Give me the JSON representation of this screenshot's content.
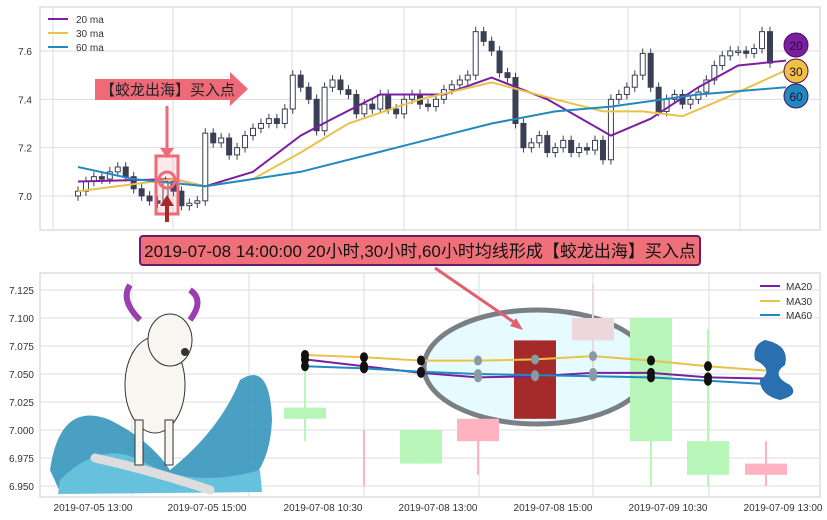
{
  "colors": {
    "ma20": "#7b1fa2",
    "ma30": "#e8c24a",
    "ma60": "#1f8ac0",
    "candle": "#3a3f55",
    "annotation": "#ef6a78",
    "title_border": "#6a1b6a"
  },
  "chart_data": [
    {
      "type": "candlestick",
      "title": "",
      "ylim": [
        6.87,
        7.77
      ],
      "yticks": [
        "7.0",
        "7.2",
        "7.4",
        "7.6"
      ],
      "grid": true,
      "legend": {
        "placement": "top-left",
        "entries": [
          "20 ma",
          "30 ma",
          "60 ma"
        ]
      },
      "closes": [
        7.02,
        7.06,
        7.08,
        7.07,
        7.1,
        7.12,
        7.08,
        7.03,
        7.0,
        6.98,
        6.97,
        7.06,
        7.02,
        6.96,
        6.97,
        6.98,
        7.26,
        7.22,
        7.24,
        7.17,
        7.2,
        7.25,
        7.28,
        7.3,
        7.32,
        7.3,
        7.36,
        7.5,
        7.45,
        7.4,
        7.27,
        7.45,
        7.48,
        7.44,
        7.42,
        7.34,
        7.38,
        7.36,
        7.42,
        7.36,
        7.34,
        7.4,
        7.42,
        7.38,
        7.37,
        7.4,
        7.44,
        7.46,
        7.48,
        7.5,
        7.68,
        7.64,
        7.6,
        7.51,
        7.49,
        7.3,
        7.2,
        7.22,
        7.25,
        7.18,
        7.2,
        7.23,
        7.18,
        7.2,
        7.19,
        7.23,
        7.15,
        7.4,
        7.42,
        7.45,
        7.5,
        7.59,
        7.45,
        7.35,
        7.4,
        7.42,
        7.38,
        7.4,
        7.43,
        7.48,
        7.54,
        7.58,
        7.6,
        7.6,
        7.59,
        7.61,
        7.68,
        7.55
      ],
      "ma_series": [
        {
          "name": "20 ma",
          "points": [
            [
              0,
              7.06
            ],
            [
              12,
              7.07
            ],
            [
              16,
              7.04
            ],
            [
              22,
              7.1
            ],
            [
              28,
              7.25
            ],
            [
              32,
              7.32
            ],
            [
              38,
              7.42
            ],
            [
              46,
              7.42
            ],
            [
              52,
              7.49
            ],
            [
              59,
              7.4
            ],
            [
              67,
              7.25
            ],
            [
              72,
              7.32
            ],
            [
              78,
              7.45
            ],
            [
              83,
              7.54
            ],
            [
              89,
              7.56
            ]
          ]
        },
        {
          "name": "30 ma",
          "points": [
            [
              0,
              7.02
            ],
            [
              12,
              7.07
            ],
            [
              16,
              7.04
            ],
            [
              22,
              7.07
            ],
            [
              28,
              7.18
            ],
            [
              34,
              7.3
            ],
            [
              43,
              7.4
            ],
            [
              52,
              7.47
            ],
            [
              60,
              7.4
            ],
            [
              66,
              7.35
            ],
            [
              71,
              7.35
            ],
            [
              76,
              7.33
            ],
            [
              81,
              7.4
            ],
            [
              89,
              7.52
            ]
          ]
        },
        {
          "name": "60 ma",
          "points": [
            [
              0,
              7.12
            ],
            [
              7,
              7.07
            ],
            [
              16,
              7.04
            ],
            [
              28,
              7.1
            ],
            [
              40,
              7.2
            ],
            [
              52,
              7.3
            ],
            [
              60,
              7.35
            ],
            [
              67,
              7.37
            ],
            [
              78,
              7.42
            ],
            [
              89,
              7.45
            ]
          ]
        }
      ],
      "badges": [
        "20",
        "30",
        "60"
      ],
      "annotation": {
        "label": "【蛟龙出海】买入点",
        "candle_index": 11
      }
    },
    {
      "type": "candlestick",
      "title": "2019-07-08 14:00:00 20小时,30小时,60小时均线形成【蛟龙出海】买入点",
      "ylim": [
        6.945,
        7.135
      ],
      "yticks": [
        "7.125",
        "7.100",
        "7.075",
        "7.050",
        "7.025",
        "7.000",
        "6.975",
        "6.950"
      ],
      "xticks": [
        "2019-07-05 13:00",
        "2019-07-05 15:00",
        "2019-07-08 10:30",
        "2019-07-08 13:00",
        "2019-07-08 15:00",
        "2019-07-09 10:30",
        "2019-07-09 13:00"
      ],
      "grid": true,
      "legend": {
        "placement": "top-right",
        "entries": [
          "MA20",
          "MA30",
          "MA60"
        ]
      },
      "candles": [
        {
          "o": 7.02,
          "c": 7.01,
          "h": 7.07,
          "l": 6.99,
          "color": "#b8f5b8"
        },
        {
          "o": 7.0,
          "c": 7.0,
          "h": 7.0,
          "l": 6.95,
          "color": "#ffb3c1"
        },
        {
          "o": 7.0,
          "c": 6.97,
          "h": 7.0,
          "l": 6.97,
          "color": "#b8f5b8"
        },
        {
          "o": 6.99,
          "c": 7.01,
          "h": 7.01,
          "l": 6.96,
          "color": "#ffb3c1"
        },
        {
          "o": 7.01,
          "c": 7.08,
          "h": 7.08,
          "l": 7.01,
          "color": "#a52a2a"
        },
        {
          "o": 7.08,
          "c": 7.1,
          "h": 7.13,
          "l": 7.05,
          "color": "#ecd8da"
        },
        {
          "o": 7.1,
          "c": 6.99,
          "h": 7.1,
          "l": 6.95,
          "color": "#b8f5b8"
        },
        {
          "o": 6.99,
          "c": 6.96,
          "h": 7.09,
          "l": 6.95,
          "color": "#b8f5b8"
        },
        {
          "o": 6.96,
          "c": 6.97,
          "h": 6.99,
          "l": 6.95,
          "color": "#ffb3c1"
        }
      ],
      "ma_series": [
        {
          "name": "MA20",
          "values": [
            7.063,
            7.057,
            7.051,
            7.047,
            7.048,
            7.051,
            7.051,
            7.047,
            7.046
          ]
        },
        {
          "name": "MA30",
          "values": [
            7.067,
            7.065,
            7.062,
            7.062,
            7.063,
            7.066,
            7.062,
            7.057,
            7.053
          ]
        },
        {
          "name": "MA60",
          "values": [
            7.057,
            7.055,
            7.052,
            7.05,
            7.049,
            7.048,
            7.047,
            7.044,
            7.041
          ]
        }
      ],
      "highlight_candle_index": 4
    }
  ]
}
